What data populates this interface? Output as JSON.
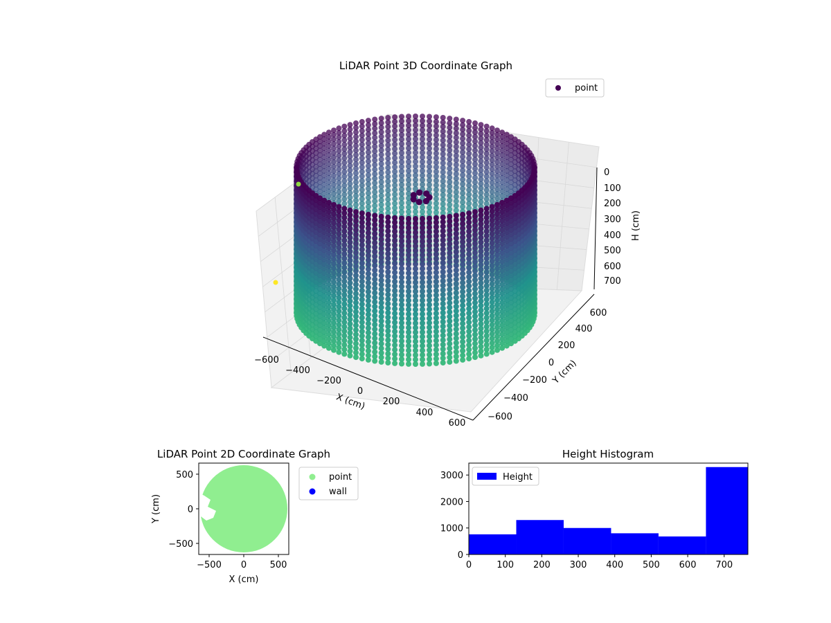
{
  "chart_data": [
    {
      "type": "scatter",
      "projection": "3d",
      "title": "LiDAR Point 3D Coordinate Graph",
      "xlabel": "X (cm)",
      "ylabel": "Y (cm)",
      "zlabel": "H (cm)",
      "xticks": [
        "−600",
        "−400",
        "−200",
        "0",
        "200",
        "400",
        "600"
      ],
      "yticks": [
        "−600",
        "−400",
        "−200",
        "0",
        "200",
        "400",
        "600"
      ],
      "zticks": [
        "0",
        "100",
        "200",
        "300",
        "400",
        "500",
        "600",
        "700"
      ],
      "xlim": [
        -650,
        650
      ],
      "ylim": [
        -650,
        650
      ],
      "zlim": [
        0,
        760
      ],
      "z_inverted": true,
      "colormap": "viridis",
      "legend": {
        "labels": [
          "point"
        ],
        "position": "top-right"
      },
      "series": [
        {
          "name": "point",
          "shape": "cylinder wall of points",
          "radius_cm": 600,
          "height_range_cm": [
            0,
            760
          ],
          "points_per_ring": 108,
          "height_levels": 33,
          "color": "#440154"
        }
      ],
      "colors": {
        "top": "#440154",
        "mid": "#3b528b",
        "low": "#21918c",
        "bottom": "#35b779",
        "outlier": "#fde725"
      }
    },
    {
      "type": "scatter",
      "title": "LiDAR Point 2D Coordinate Graph",
      "xlabel": "X (cm)",
      "ylabel": "Y (cm)",
      "xticks": [
        "−500",
        "0",
        "500"
      ],
      "yticks": [
        "−500",
        "0",
        "500"
      ],
      "xlim": [
        -650,
        650
      ],
      "ylim": [
        -650,
        650
      ],
      "legend": {
        "labels": [
          "point",
          "wall"
        ],
        "position": "outside-right"
      },
      "series": [
        {
          "name": "point",
          "color": "#90ee90",
          "shape": "filled disk",
          "center": [
            0,
            0
          ],
          "radius_cm": 620
        },
        {
          "name": "wall",
          "color": "#0000ff"
        }
      ]
    },
    {
      "type": "histogram",
      "title": "Height Histogram",
      "xticks": [
        "0",
        "100",
        "200",
        "300",
        "400",
        "500",
        "600",
        "700"
      ],
      "yticks": [
        "0",
        "1000",
        "2000",
        "3000"
      ],
      "xlim": [
        0,
        765
      ],
      "ylim": [
        0,
        3450
      ],
      "legend": {
        "labels": [
          "Height"
        ],
        "position": "top-left"
      },
      "series": [
        {
          "name": "Height",
          "color": "#0000ff",
          "bin_edges": [
            0,
            130,
            260,
            390,
            520,
            650,
            765
          ],
          "counts": [
            760,
            1300,
            1000,
            800,
            680,
            3300
          ]
        }
      ]
    }
  ]
}
